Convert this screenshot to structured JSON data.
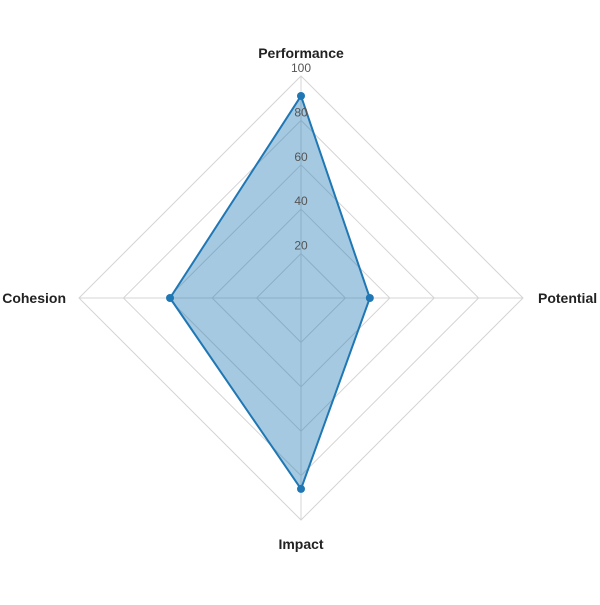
{
  "chart_data": {
    "type": "radar",
    "axes": [
      "Performance",
      "Potential",
      "Impact",
      "Cohesion"
    ],
    "series": [
      {
        "values": [
          91,
          31,
          86,
          59
        ],
        "color": "#1f77b4",
        "fill_color": "#1f77b4",
        "fill_opacity": 0.4
      }
    ],
    "range": [
      0,
      100
    ],
    "ticks": [
      "20",
      "40",
      "60",
      "80",
      "100"
    ],
    "tick_values": [
      20,
      40,
      60,
      80,
      100
    ],
    "grid": true
  }
}
